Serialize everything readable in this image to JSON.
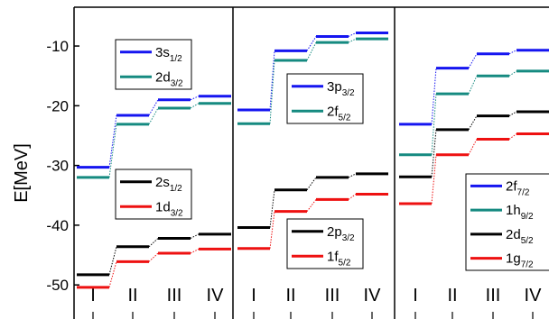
{
  "chart_data": {
    "type": "line",
    "ylabel": "E[MeV]",
    "ylim": [
      -54.5,
      -3.5
    ],
    "yticks": [
      -10,
      -20,
      -30,
      -40,
      -50
    ],
    "categories": [
      "I",
      "II",
      "III",
      "IV"
    ],
    "panels": [
      {
        "series": [
          {
            "name": "3s",
            "sub": "1/2",
            "color": "#1515f0",
            "values": [
              -30.3,
              -21.6,
              -19.0,
              -18.4
            ]
          },
          {
            "name": "2d",
            "sub": "3/2",
            "color": "#158a80",
            "values": [
              -32.0,
              -23.1,
              -20.4,
              -19.6
            ]
          },
          {
            "name": "2s",
            "sub": "1/2",
            "color": "#000000",
            "values": [
              -48.3,
              -43.6,
              -42.2,
              -41.5
            ]
          },
          {
            "name": "1d",
            "sub": "3/2",
            "color": "#ee1111",
            "values": [
              -50.4,
              -46.1,
              -44.7,
              -44.0
            ]
          }
        ],
        "legends": [
          {
            "items": [
              "3s",
              "2d"
            ]
          },
          {
            "items": [
              "2s",
              "1d"
            ]
          }
        ]
      },
      {
        "series": [
          {
            "name": "3p",
            "sub": "3/2",
            "color": "#1515f0",
            "values": [
              -20.7,
              -10.8,
              -8.4,
              -7.8
            ]
          },
          {
            "name": "2f",
            "sub": "5/2",
            "color": "#158a80",
            "values": [
              -23.0,
              -12.4,
              -9.4,
              -8.8
            ]
          },
          {
            "name": "2p",
            "sub": "3/2",
            "color": "#000000",
            "values": [
              -40.4,
              -34.1,
              -32.0,
              -31.4
            ]
          },
          {
            "name": "1f",
            "sub": "5/2",
            "color": "#ee1111",
            "values": [
              -43.9,
              -37.7,
              -35.7,
              -34.8
            ]
          }
        ],
        "legends": [
          {
            "items": [
              "3p",
              "2f"
            ]
          },
          {
            "items": [
              "2p",
              "1f"
            ]
          }
        ]
      },
      {
        "series": [
          {
            "name": "2f",
            "sub": "7/2",
            "color": "#1515f0",
            "values": [
              -23.1,
              -13.7,
              -11.3,
              -10.7
            ]
          },
          {
            "name": "1h",
            "sub": "9/2",
            "color": "#158a80",
            "values": [
              -28.2,
              -18.0,
              -15.0,
              -14.2
            ]
          },
          {
            "name": "2d",
            "sub": "5/2",
            "color": "#000000",
            "values": [
              -31.9,
              -24.0,
              -21.7,
              -21.0
            ]
          },
          {
            "name": "1g",
            "sub": "7/2",
            "color": "#ee1111",
            "values": [
              -36.4,
              -28.2,
              -25.6,
              -24.7
            ]
          }
        ],
        "legends": [
          {
            "items": [
              "2f",
              "1h",
              "2d",
              "1g"
            ]
          }
        ]
      }
    ]
  }
}
